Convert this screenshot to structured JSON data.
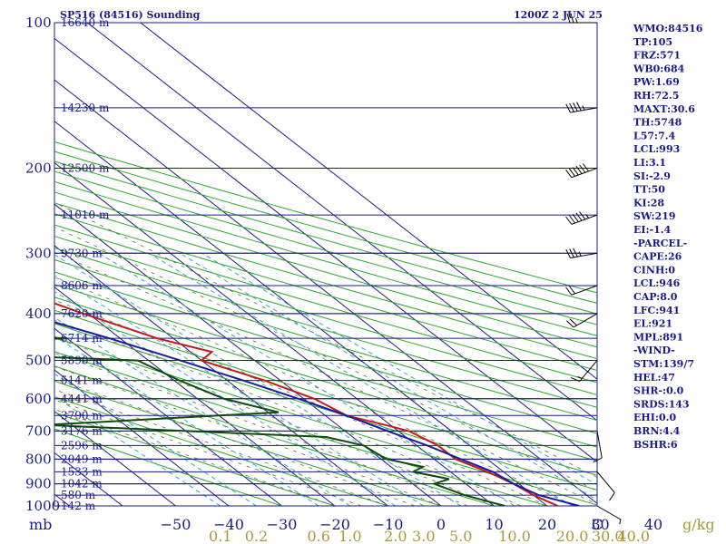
{
  "header": {
    "title": "SP516 (84516) Sounding",
    "time": "1200Z  2 JUN 25"
  },
  "indices": [
    "WMO:84516",
    "TP:105",
    "FRZ:571",
    "WB0:684",
    "PW:1.69",
    "RH:72.5",
    "MAXT:30.6",
    "TH:5748",
    "L57:7.4",
    "LCL:993",
    "LI:3.1",
    "SI:-2.9",
    "TT:50",
    "KI:28",
    "SW:219",
    "EI:-1.4",
    "-PARCEL-",
    "CAPE:26",
    "CINH:0",
    "LCL:946",
    "CAP:8.0",
    "LFC:941",
    "EL:921",
    "MPL:891",
    "-WIND-",
    "STM:139/7",
    "HEL:47",
    "SHR-:0.0",
    "SRDS:143",
    "EHI:0.0",
    "BRN:4.4",
    "BSHR:6"
  ],
  "axes": {
    "pressure_unit": "mb",
    "temp_unit": "C",
    "mixing_ratio_unit": "g/kg"
  },
  "chart_data": {
    "type": "line",
    "title": "SP516 (84516) Sounding",
    "x_axis": {
      "label": "C",
      "ticks": [
        -50,
        -40,
        -30,
        -20,
        -10,
        0,
        10,
        20,
        30,
        40
      ],
      "range": [
        -50,
        50
      ]
    },
    "y_axis": {
      "label": "mb",
      "scale": "log",
      "ticks": [
        100,
        200,
        300,
        400,
        500,
        600,
        700,
        800,
        900,
        1000
      ],
      "range": [
        1000,
        100
      ]
    },
    "mixing_ratio_ticks": [
      "0.1",
      "0.2",
      "0.6",
      "1.0",
      "2.0",
      "3.0",
      "5.0",
      "10.0",
      "20.0",
      "30.0",
      "40.0"
    ],
    "height_levels": [
      {
        "p": 100,
        "label": "16640 m"
      },
      {
        "p": 150,
        "label": "14230 m"
      },
      {
        "p": 200,
        "label": "12500 m"
      },
      {
        "p": 250,
        "label": "11010 m"
      },
      {
        "p": 300,
        "label": "9730 m"
      },
      {
        "p": 350,
        "label": "8606 m"
      },
      {
        "p": 400,
        "label": "7620 m"
      },
      {
        "p": 450,
        "label": "6714 m"
      },
      {
        "p": 500,
        "label": "5890 m"
      },
      {
        "p": 550,
        "label": "5141 m"
      },
      {
        "p": 600,
        "label": "4441 m"
      },
      {
        "p": 650,
        "label": "3790 m"
      },
      {
        "p": 700,
        "label": "3176 m"
      },
      {
        "p": 750,
        "label": "2596 m"
      },
      {
        "p": 800,
        "label": "2049 m"
      },
      {
        "p": 850,
        "label": "1533 m"
      },
      {
        "p": 900,
        "label": "1042 m"
      },
      {
        "p": 950,
        "label": "580 m"
      },
      {
        "p": 1000,
        "label": "142 m"
      }
    ],
    "series": [
      {
        "kind": "temperature",
        "color": "#c41a1a",
        "points": [
          [
            100,
            -87
          ],
          [
            103,
            -81
          ],
          [
            130,
            -78
          ],
          [
            150,
            -74
          ],
          [
            180,
            -66
          ],
          [
            200,
            -62
          ],
          [
            250,
            -49
          ],
          [
            280,
            -41
          ],
          [
            300,
            -38
          ],
          [
            350,
            -29
          ],
          [
            400,
            -21
          ],
          [
            450,
            -13
          ],
          [
            480,
            -6
          ],
          [
            500,
            -10
          ],
          [
            550,
            -3
          ],
          [
            600,
            2
          ],
          [
            650,
            4
          ],
          [
            680,
            9
          ],
          [
            700,
            12
          ],
          [
            750,
            14
          ],
          [
            800,
            14
          ],
          [
            850,
            17
          ],
          [
            900,
            19
          ],
          [
            950,
            20
          ],
          [
            1000,
            22
          ]
        ]
      },
      {
        "kind": "dewpoint",
        "color": "#0f4a0f",
        "points": [
          [
            100,
            -86
          ],
          [
            105,
            -88
          ],
          [
            120,
            -87
          ],
          [
            150,
            -97
          ],
          [
            180,
            -97
          ],
          [
            200,
            -99
          ],
          [
            250,
            -97
          ],
          [
            300,
            -95
          ],
          [
            350,
            -88
          ],
          [
            400,
            -80
          ],
          [
            420,
            -87
          ],
          [
            450,
            -30
          ],
          [
            470,
            -83
          ],
          [
            500,
            -22
          ],
          [
            550,
            -19
          ],
          [
            600,
            -15
          ],
          [
            640,
            -8
          ],
          [
            680,
            -55
          ],
          [
            700,
            -30
          ],
          [
            720,
            -5
          ],
          [
            750,
            0
          ],
          [
            800,
            1
          ],
          [
            830,
            6
          ],
          [
            850,
            3
          ],
          [
            880,
            8
          ],
          [
            900,
            4
          ],
          [
            950,
            7
          ],
          [
            1000,
            12
          ]
        ]
      },
      {
        "kind": "parcel",
        "color": "#1a1aa8",
        "points": [
          [
            100,
            -125
          ],
          [
            150,
            -102
          ],
          [
            200,
            -84
          ],
          [
            250,
            -69
          ],
          [
            300,
            -56
          ],
          [
            350,
            -43
          ],
          [
            400,
            -32
          ],
          [
            450,
            -22
          ],
          [
            500,
            -14
          ],
          [
            550,
            -7
          ],
          [
            600,
            -1
          ],
          [
            650,
            4
          ],
          [
            700,
            8
          ],
          [
            750,
            12
          ],
          [
            800,
            15
          ],
          [
            850,
            18
          ],
          [
            900,
            19
          ],
          [
            950,
            21
          ],
          [
            1000,
            26
          ]
        ]
      }
    ],
    "wind_barbs": [
      {
        "p": 100,
        "dir": 270,
        "spd": 25
      },
      {
        "p": 150,
        "dir": 260,
        "spd": 45
      },
      {
        "p": 200,
        "dir": 250,
        "spd": 60
      },
      {
        "p": 250,
        "dir": 250,
        "spd": 55
      },
      {
        "p": 300,
        "dir": 260,
        "spd": 35
      },
      {
        "p": 350,
        "dir": 250,
        "spd": 20
      },
      {
        "p": 400,
        "dir": 240,
        "spd": 20
      },
      {
        "p": 500,
        "dir": 220,
        "spd": 15
      },
      {
        "p": 700,
        "dir": 170,
        "spd": 10
      },
      {
        "p": 850,
        "dir": 140,
        "spd": 10
      },
      {
        "p": 1000,
        "dir": 120,
        "spd": 5
      }
    ]
  }
}
